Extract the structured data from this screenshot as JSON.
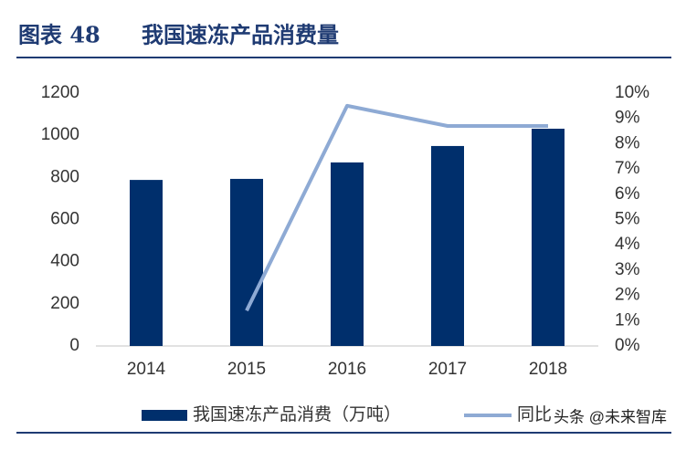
{
  "chart_data": {
    "type": "bar-line",
    "figure_label": "图表 48",
    "title": "我国速冻产品消费量",
    "watermark": "头条 @未来智库",
    "categories": [
      "2014",
      "2015",
      "2016",
      "2017",
      "2018"
    ],
    "series": [
      {
        "name": "我国速冻产品消费（万吨）",
        "type": "bar",
        "color": "#002f6c",
        "values": [
          788,
          793,
          871,
          949,
          1031
        ]
      },
      {
        "name": "同比",
        "type": "line",
        "axis": "y2",
        "color": "#8eaad4",
        "values": [
          null,
          1.4,
          9.5,
          8.7,
          8.7
        ]
      }
    ],
    "ylim": [
      0,
      1200
    ],
    "yticks": [
      0,
      200,
      400,
      600,
      800,
      1000,
      1200
    ],
    "y2lim": [
      0,
      10
    ],
    "y2ticks": [
      {
        "value": 0,
        "label": "0%"
      },
      {
        "value": 1,
        "label": "1%"
      },
      {
        "value": 2,
        "label": "2%"
      },
      {
        "value": 3,
        "label": "3%"
      },
      {
        "value": 4,
        "label": "4%"
      },
      {
        "value": 5,
        "label": "5%"
      },
      {
        "value": 6,
        "label": "6%"
      },
      {
        "value": 7,
        "label": "7%"
      },
      {
        "value": 8,
        "label": "8%"
      },
      {
        "value": 9,
        "label": "9%"
      },
      {
        "value": 10,
        "label": "10%"
      }
    ],
    "grid": false,
    "legend": "bottom"
  }
}
